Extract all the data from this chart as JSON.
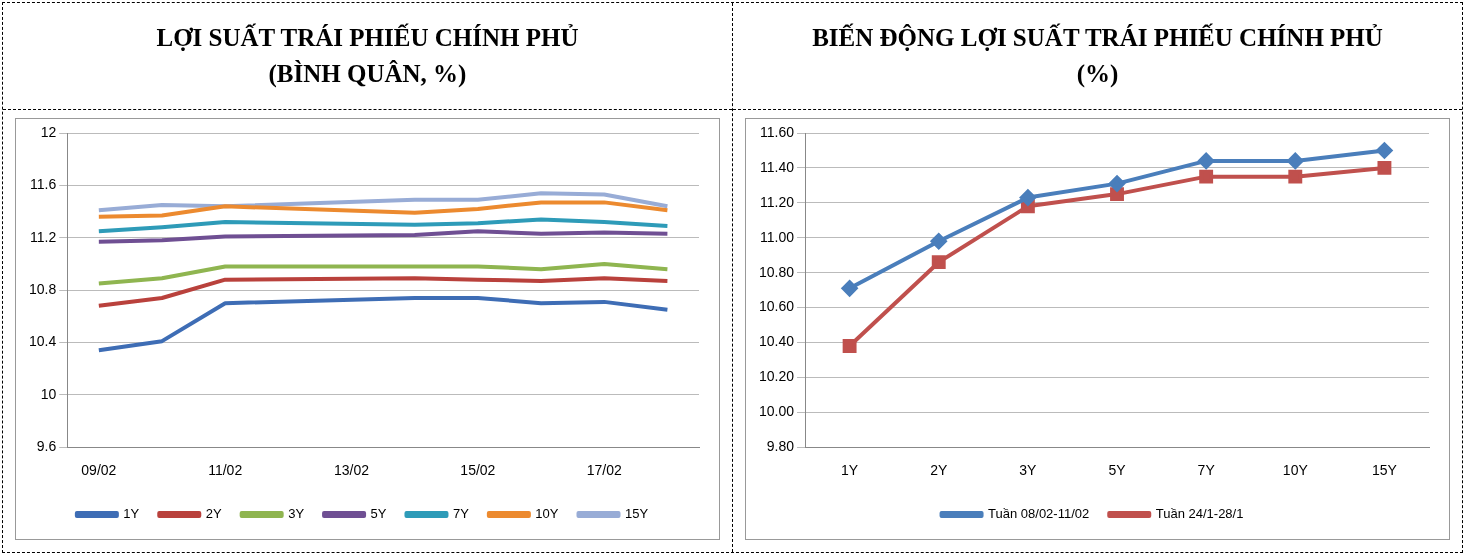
{
  "chart_data": [
    {
      "type": "line",
      "title": "LỢI SUẤT TRÁI PHIẾU CHÍNH PHỦ\n(BÌNH QUÂN, %)",
      "categories": [
        "09/02",
        null,
        "11/02",
        null,
        "13/02",
        null,
        "15/02",
        null,
        "17/02",
        null
      ],
      "series": [
        {
          "name": "1Y",
          "color": "#3e6db5",
          "values": [
            10.34,
            10.41,
            10.7,
            null,
            null,
            10.74,
            10.74,
            10.7,
            10.71,
            10.65
          ]
        },
        {
          "name": "2Y",
          "color": "#b9413c",
          "values": [
            10.68,
            10.74,
            10.88,
            null,
            null,
            10.89,
            10.88,
            10.87,
            10.89,
            10.87
          ]
        },
        {
          "name": "3Y",
          "color": "#8fb550",
          "values": [
            10.85,
            10.89,
            10.98,
            null,
            null,
            10.98,
            10.98,
            10.96,
            11.0,
            10.96
          ]
        },
        {
          "name": "5Y",
          "color": "#6f4f93",
          "values": [
            11.17,
            11.18,
            11.21,
            null,
            null,
            11.22,
            11.25,
            11.23,
            11.24,
            11.23
          ]
        },
        {
          "name": "7Y",
          "color": "#2e9bb8",
          "values": [
            11.25,
            11.28,
            11.32,
            null,
            null,
            11.3,
            11.31,
            11.34,
            11.32,
            11.29
          ]
        },
        {
          "name": "10Y",
          "color": "#ec8a2f",
          "values": [
            11.36,
            11.37,
            11.44,
            null,
            null,
            11.39,
            11.42,
            11.47,
            11.47,
            11.41
          ]
        },
        {
          "name": "15Y",
          "color": "#98acd6",
          "values": [
            11.41,
            11.45,
            11.44,
            null,
            null,
            11.49,
            11.49,
            11.54,
            11.53,
            11.44
          ]
        }
      ],
      "ylim": [
        9.6,
        12
      ],
      "yticks": [
        9.6,
        10,
        10.4,
        10.8,
        11.2,
        11.6,
        12
      ],
      "grid": "y",
      "legend": "bottom",
      "marker": "none",
      "line_style": "solid"
    },
    {
      "type": "line",
      "title": "BIẾN ĐỘNG LỢI SUẤT TRÁI PHIẾU CHÍNH PHỦ\n(%)",
      "categories": [
        "1Y",
        "2Y",
        "3Y",
        "5Y",
        "7Y",
        "10Y",
        "15Y"
      ],
      "series": [
        {
          "name": "Tuần 08/02-11/02",
          "color": "#4a7ebb",
          "marker": "diamond",
          "values": [
            10.71,
            10.98,
            11.23,
            11.31,
            11.44,
            11.44,
            11.5
          ]
        },
        {
          "name": "Tuần 24/1-28/1",
          "color": "#c0504d",
          "marker": "square",
          "values": [
            10.38,
            10.86,
            11.18,
            11.25,
            11.35,
            11.35,
            11.4
          ]
        }
      ],
      "ylim": [
        9.8,
        11.6
      ],
      "yticks": [
        {
          "value": 9.8,
          "label": "9.80"
        },
        {
          "value": 10,
          "label": "10.00"
        },
        {
          "value": 10.2,
          "label": "10.20"
        },
        {
          "value": 10.4,
          "label": "10.40"
        },
        {
          "value": 10.6,
          "label": "10.60"
        },
        {
          "value": 10.8,
          "label": "10.80"
        },
        {
          "value": 11,
          "label": "11.00"
        },
        {
          "value": 11.2,
          "label": "11.20"
        },
        {
          "value": 11.4,
          "label": "11.40"
        },
        {
          "value": 11.6,
          "label": "11.60"
        }
      ],
      "grid": "y",
      "legend": "bottom",
      "line_style": "solid"
    }
  ]
}
